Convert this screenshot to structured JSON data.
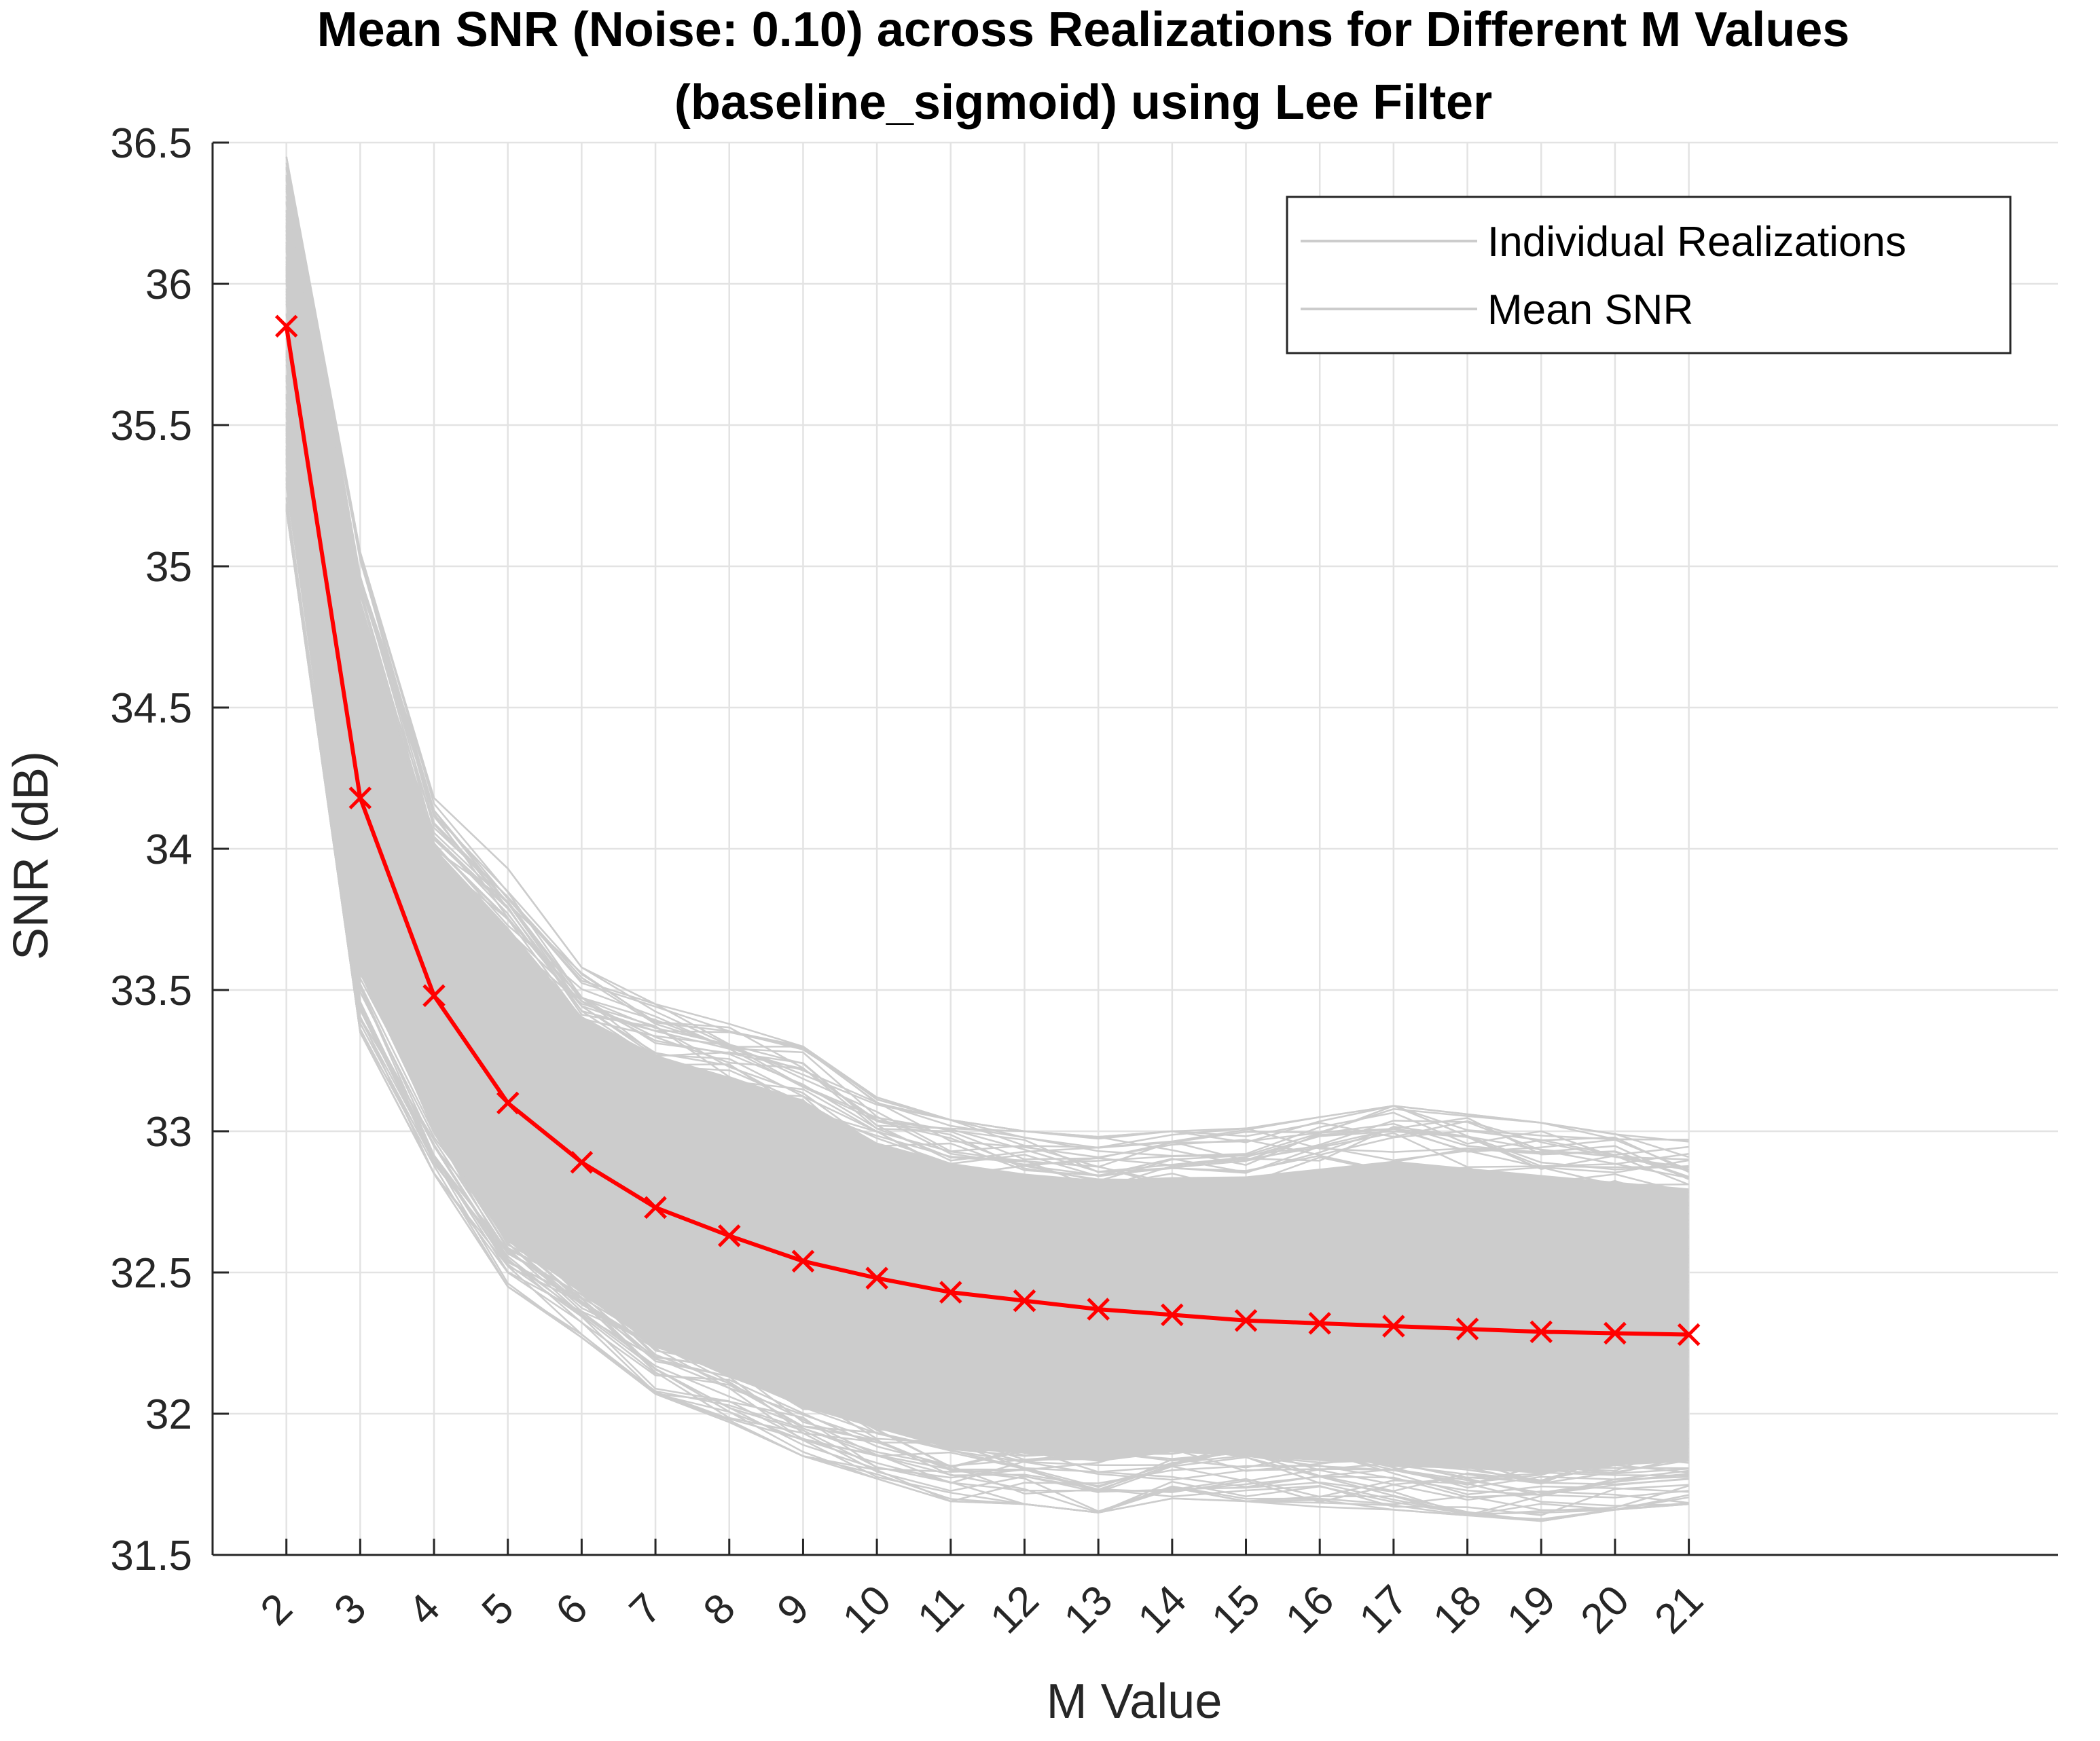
{
  "chart_data": {
    "type": "line",
    "title_line1": "Mean SNR (Noise: 0.10) across Realizations for Different M Values",
    "title_line2": "(baseline_sigmoid) using Lee Filter",
    "xlabel": "M Value",
    "ylabel": "SNR (dB)",
    "xlim": [
      1,
      26
    ],
    "ylim": [
      31.5,
      36.5
    ],
    "x": [
      2,
      3,
      4,
      5,
      6,
      7,
      8,
      9,
      10,
      11,
      12,
      13,
      14,
      15,
      16,
      17,
      18,
      19,
      20,
      21
    ],
    "x_tick_labels": [
      "2",
      "3",
      "4",
      "5",
      "6",
      "7",
      "8",
      "9",
      "10",
      "11",
      "12",
      "13",
      "14",
      "15",
      "16",
      "17",
      "18",
      "19",
      "20",
      "21"
    ],
    "y_ticks": [
      31.5,
      32,
      32.5,
      33,
      33.5,
      34,
      34.5,
      35,
      35.5,
      36,
      36.5
    ],
    "y_tick_labels": [
      "31.5",
      "32",
      "32.5",
      "33",
      "33.5",
      "34",
      "34.5",
      "35",
      "35.5",
      "36",
      "36.5"
    ],
    "grid": true,
    "legend_position": "top-right",
    "series": [
      {
        "name": "Mean SNR",
        "color": "#ff0000",
        "marker": "x",
        "values": [
          35.85,
          34.18,
          33.48,
          33.1,
          32.89,
          32.73,
          32.63,
          32.54,
          32.48,
          32.43,
          32.4,
          32.37,
          32.35,
          32.33,
          32.32,
          32.31,
          32.3,
          32.29,
          32.285,
          32.28
        ]
      }
    ],
    "realizations": {
      "name": "Individual Realizations",
      "color": "#cccccc",
      "description_values": {
        "upper_envelope": [
          36.45,
          35.05,
          34.18,
          33.93,
          33.58,
          33.45,
          33.38,
          33.3,
          33.12,
          33.04,
          33.0,
          32.98,
          33.0,
          33.01,
          33.05,
          33.09,
          33.06,
          33.03,
          33.0,
          32.97
        ],
        "lower_envelope": [
          35.2,
          33.35,
          32.85,
          32.45,
          32.27,
          32.07,
          31.97,
          31.85,
          31.77,
          31.69,
          31.68,
          31.65,
          31.7,
          31.69,
          31.67,
          31.66,
          31.64,
          31.62,
          31.66,
          31.68
        ]
      }
    },
    "legend": [
      "Individual Realizations",
      "Mean SNR"
    ]
  }
}
